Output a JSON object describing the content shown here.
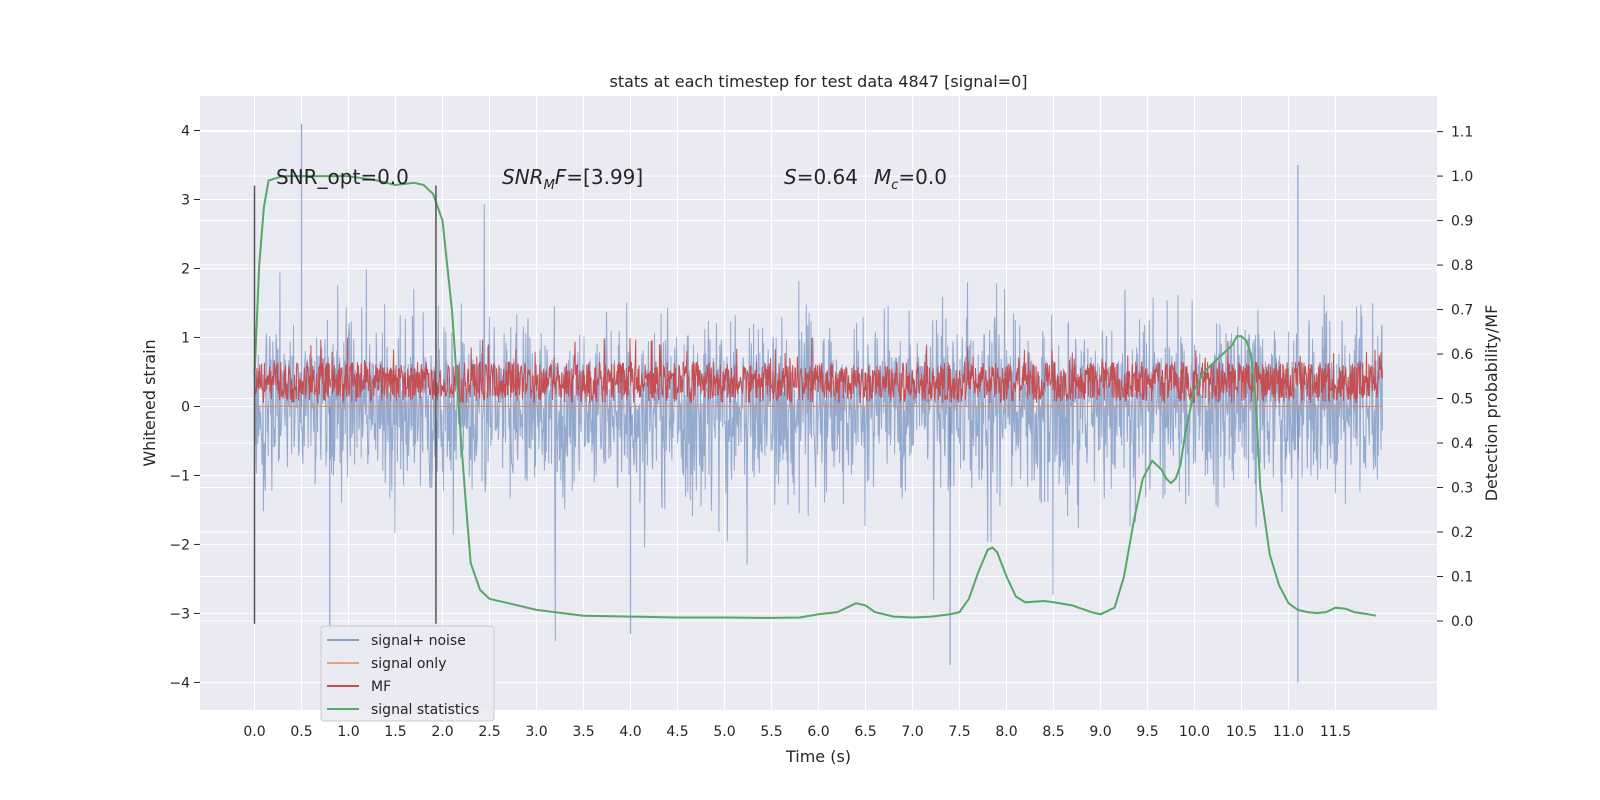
{
  "chart_data": {
    "type": "line",
    "title": "stats at each timestep for test data 4847 [signal=0]",
    "xlabel": "Time (s)",
    "ylabel": "Whitened strain",
    "ylabel_right": "Detection probability/MF",
    "xlim": [
      -0.58,
      12.58
    ],
    "ylim": [
      -4.4,
      4.5
    ],
    "ylim_right": [
      -0.2,
      1.18
    ],
    "grid": true,
    "xticks": [
      0.0,
      0.5,
      1.0,
      1.5,
      2.0,
      2.5,
      3.0,
      3.5,
      4.0,
      4.5,
      5.0,
      5.5,
      6.0,
      6.5,
      7.0,
      7.5,
      8.0,
      8.5,
      9.0,
      9.5,
      10.0,
      10.5,
      11.0,
      11.5
    ],
    "xtick_labels": [
      "0.0",
      "0.5",
      "1.0",
      "1.5",
      "2.0",
      "2.5",
      "3.0",
      "3.5",
      "4.0",
      "4.5",
      "5.0",
      "5.5",
      "6.0",
      "6.5",
      "7.0",
      "7.5",
      "8.0",
      "8.5",
      "9.0",
      "9.5",
      "10.0",
      "10.5",
      "11.0",
      "11.5"
    ],
    "yticks": [
      4,
      3,
      2,
      1,
      0,
      -1,
      -2,
      -3,
      -4
    ],
    "ytick_labels": [
      "4",
      "3",
      "2",
      "1",
      "0",
      "−1",
      "−2",
      "−3",
      "−4"
    ],
    "yticks_right": [
      1.1,
      1.0,
      0.9,
      0.8,
      0.7,
      0.6,
      0.5,
      0.4,
      0.3,
      0.2,
      0.1,
      0.0
    ],
    "ytick_labels_right": [
      "1.1",
      "1.0",
      "0.9",
      "0.8",
      "0.7",
      "0.6",
      "0.5",
      "0.4",
      "0.3",
      "0.2",
      "0.1",
      "0.0"
    ],
    "annotations": [
      {
        "text": "SNR_opt=0.0",
        "x": 0.2,
        "y": 3.2
      },
      {
        "text": "SNR_MF=[3.99]",
        "x": 2.6,
        "y": 3.2
      },
      {
        "text": "S=0.64   M_c=0.0",
        "x": 5.6,
        "y": 3.2
      }
    ],
    "vlines": [
      {
        "x": 0.0,
        "y0": -3.15,
        "y1": 3.2
      },
      {
        "x": 1.93,
        "y0": -3.15,
        "y1": 3.2
      }
    ],
    "legend_position": "lower-left",
    "series": [
      {
        "name": "signal+ noise",
        "axis": "left",
        "style": "noise-band",
        "color": "#4c72b0",
        "x_range": [
          0.0,
          12.0
        ],
        "typical_range": [
          -1.3,
          1.3
        ],
        "spikes": [
          {
            "x": 0.5,
            "y": 4.1
          },
          {
            "x": 0.8,
            "y": -3.2
          },
          {
            "x": 4.0,
            "y": -3.3
          },
          {
            "x": 7.4,
            "y": -3.75
          },
          {
            "x": 11.1,
            "y": 3.5
          },
          {
            "x": 11.1,
            "y": -4.0
          }
        ]
      },
      {
        "name": "signal only",
        "axis": "left",
        "color": "#dd8452",
        "x": [
          0.0,
          12.0
        ],
        "y": [
          0.0,
          0.0
        ]
      },
      {
        "name": "MF",
        "axis": "left",
        "style": "noise-band",
        "color": "#c44e52",
        "x_range": [
          0.0,
          12.0
        ],
        "typical_range": [
          0.05,
          0.65
        ],
        "peak": 1.0
      },
      {
        "name": "signal statistics",
        "axis": "right",
        "color": "#55a868",
        "x": [
          0.0,
          0.05,
          0.1,
          0.15,
          0.3,
          0.5,
          0.8,
          1.0,
          1.3,
          1.5,
          1.7,
          1.8,
          1.9,
          2.0,
          2.1,
          2.15,
          2.2,
          2.25,
          2.3,
          2.4,
          2.5,
          2.7,
          3.0,
          3.5,
          4.0,
          4.5,
          5.0,
          5.5,
          5.8,
          6.0,
          6.2,
          6.3,
          6.4,
          6.5,
          6.6,
          6.8,
          7.0,
          7.2,
          7.4,
          7.5,
          7.6,
          7.7,
          7.8,
          7.85,
          7.9,
          8.0,
          8.1,
          8.2,
          8.4,
          8.5,
          8.7,
          8.9,
          9.0,
          9.15,
          9.25,
          9.35,
          9.45,
          9.55,
          9.65,
          9.7,
          9.75,
          9.8,
          9.85,
          9.9,
          10.0,
          10.1,
          10.2,
          10.3,
          10.4,
          10.45,
          10.5,
          10.55,
          10.6,
          10.65,
          10.7,
          10.8,
          10.9,
          11.0,
          11.1,
          11.2,
          11.3,
          11.4,
          11.5,
          11.6,
          11.7,
          11.85,
          11.93
        ],
        "y": [
          0.55,
          0.8,
          0.93,
          0.99,
          1.0,
          1.0,
          1.0,
          1.0,
          0.99,
          0.98,
          0.985,
          0.98,
          0.96,
          0.9,
          0.7,
          0.55,
          0.4,
          0.26,
          0.13,
          0.07,
          0.05,
          0.04,
          0.025,
          0.012,
          0.01,
          0.008,
          0.008,
          0.007,
          0.008,
          0.015,
          0.02,
          0.03,
          0.04,
          0.035,
          0.02,
          0.01,
          0.008,
          0.01,
          0.015,
          0.02,
          0.05,
          0.11,
          0.16,
          0.165,
          0.155,
          0.1,
          0.055,
          0.042,
          0.045,
          0.042,
          0.035,
          0.02,
          0.015,
          0.03,
          0.1,
          0.22,
          0.32,
          0.36,
          0.34,
          0.32,
          0.31,
          0.32,
          0.35,
          0.42,
          0.52,
          0.56,
          0.58,
          0.6,
          0.62,
          0.64,
          0.64,
          0.63,
          0.6,
          0.5,
          0.3,
          0.15,
          0.08,
          0.04,
          0.025,
          0.02,
          0.018,
          0.02,
          0.03,
          0.028,
          0.02,
          0.015,
          0.012
        ]
      }
    ]
  }
}
